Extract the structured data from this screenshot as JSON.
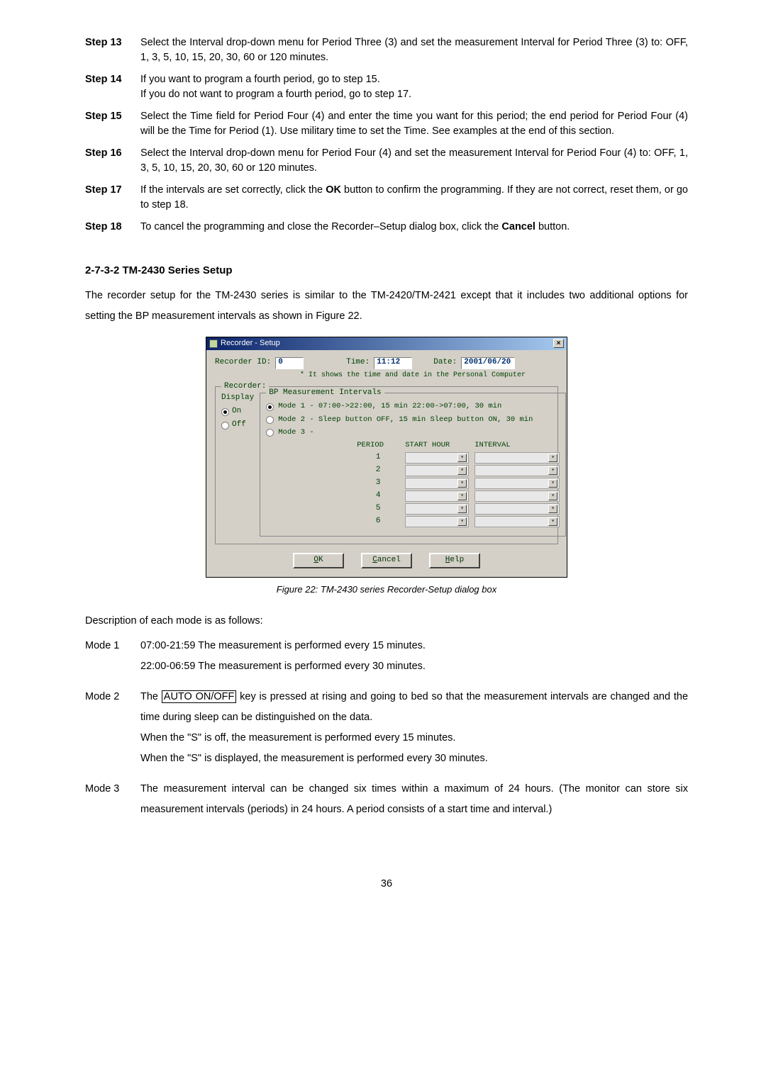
{
  "steps": [
    {
      "label": "Step 13",
      "text": "Select the Interval drop-down menu for Period Three (3) and set the measurement Interval for Period Three (3) to:  OFF, 1, 3, 5, 10, 15, 20, 30, 60 or 120 minutes."
    },
    {
      "label": "Step 14",
      "text": "If you want to program a fourth period, go to step 15.\nIf you do not want to program a fourth period, go to step 17."
    },
    {
      "label": "Step 15",
      "text": "Select the Time field for Period Four (4) and enter the time you want for this period; the end period for Period Four (4) will be the Time for Period (1). Use military time to set the Time.  See examples at the end of this section."
    },
    {
      "label": "Step 16",
      "text": "Select the Interval drop-down menu for Period Four (4) and set the measurement Interval for Period Four (4) to:  OFF, 1, 3, 5, 10, 15, 20, 30, 60 or 120 minutes."
    },
    {
      "label": "Step 17",
      "text_html": "If the intervals are set correctly, click the <b>OK</b> button to confirm the programming. If they are not correct, reset them, or go to step 18."
    },
    {
      "label": "Step 18",
      "text_html": "To cancel the programming and close the Recorder–Setup dialog box, click the <b>Cancel</b> button."
    }
  ],
  "section_heading": "2-7-3-2 TM-2430 Series Setup",
  "section_para": "The recorder setup for the TM-2430 series is similar to the TM-2420/TM-2421 except that it includes two additional options for setting the BP measurement intervals as shown in Figure 22.",
  "dialog": {
    "title": "Recorder - Setup",
    "recorder_id_label": "Recorder ID:",
    "recorder_id_value": "0",
    "time_label": "Time:",
    "time_value": "11:12",
    "date_label": "Date:",
    "date_value": "2001/06/20",
    "note": "* It shows the time and date in the Personal Computer",
    "fieldset_recorder": "Recorder:",
    "display_label": "Display",
    "on_label": "On",
    "off_label": "Off",
    "fieldset_bp": "BP Measurement Intervals",
    "mode1": "Mode 1 -  07:00->22:00,  15 min  22:00->07:00, 30 min",
    "mode2": "Mode 2 -  Sleep button OFF, 15 min  Sleep button ON, 30 min",
    "mode3": "Mode 3 -",
    "col_period": "PERIOD",
    "col_start": "START HOUR",
    "col_interval": "INTERVAL",
    "rows": [
      "1",
      "2",
      "3",
      "4",
      "5",
      "6"
    ],
    "btn_ok": "OK",
    "btn_cancel": "Cancel",
    "btn_help": "Help"
  },
  "figure_caption": "Figure 22: TM-2430 series Recorder-Setup dialog box",
  "desc_intro": "Description of each mode is as follows:",
  "modes": {
    "m1_label": "Mode 1",
    "m1_body": "07:00-21:59  The measurement is performed every 15 minutes.\n22:00-06:59  The measurement is performed every 30 minutes.",
    "m2_label": "Mode 2",
    "m2_pre": "The ",
    "m2_box": "AUTO ON/OFF",
    "m2_post": " key is pressed at rising and going to bed so that the measurement intervals are changed and the time during sleep can be distinguished on the data.",
    "m2_l2": "When the \"S\" is off, the measurement is performed every 15 minutes.",
    "m2_l3": "When the \"S\" is displayed, the measurement is performed every 30 minutes.",
    "m3_label": "Mode 3",
    "m3_body": "The measurement interval can be changed six times within a maximum of 24 hours. (The monitor can store six measurement intervals (periods) in 24 hours. A period consists of a start time and interval.)"
  },
  "page_number": "36"
}
